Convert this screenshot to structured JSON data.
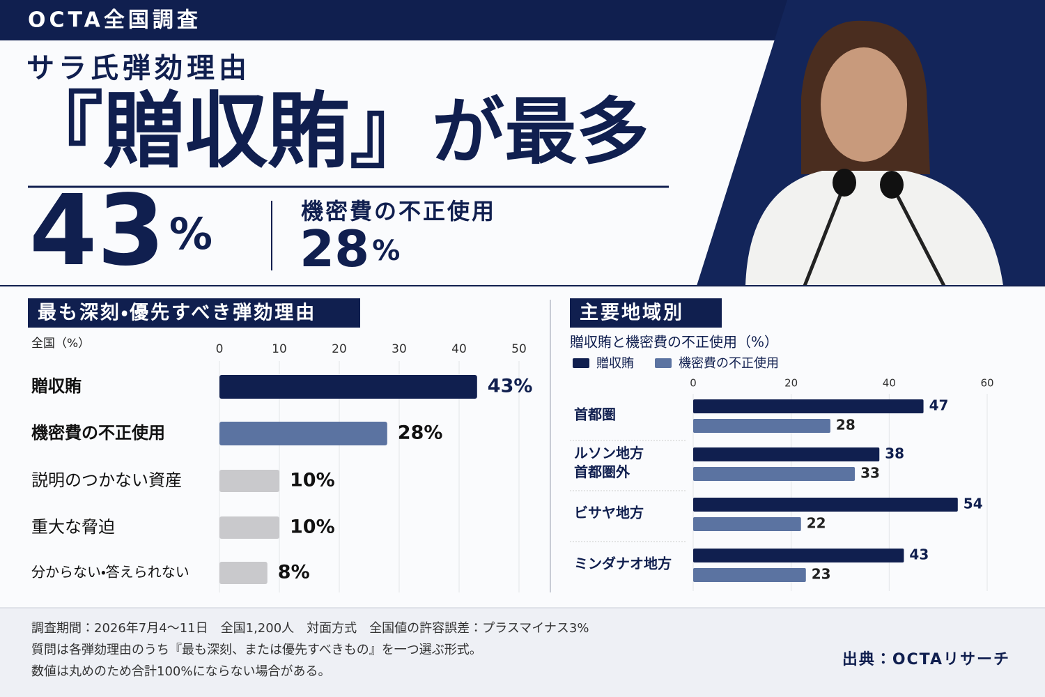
{
  "header": {
    "tag": "OCTA全国調査",
    "kicker": "サラ氏弾劾理由",
    "headline_quote": "『贈収賄』",
    "headline_rest": "が最多"
  },
  "hero": {
    "main": {
      "number": 43,
      "unit": "%"
    },
    "secondary": {
      "label": "機密費の不正使用",
      "number": 28,
      "unit": "%"
    }
  },
  "chart_data": [
    {
      "type": "bar",
      "orientation": "horizontal",
      "title": "最も深刻・優先すべき弾劾理由",
      "subtitle": "全国（%）",
      "categories": [
        "贈収賄",
        "機密費の不正使用",
        "説明のつかない資産",
        "重大な脅迫",
        "分からない・答えられない"
      ],
      "values": [
        43,
        28,
        10,
        10,
        8
      ],
      "value_labels": [
        "43%",
        "28%",
        "10%",
        "10%",
        "8%"
      ],
      "colors": [
        "#101f4f",
        "#5b73a1",
        "#c9c9cc",
        "#c9c9cc",
        "#c9c9cc"
      ],
      "xlim": [
        0,
        50
      ],
      "xticks": [
        0,
        10,
        20,
        30,
        40,
        50
      ],
      "grid": true
    },
    {
      "type": "grouped_bar",
      "orientation": "horizontal",
      "title": "主要地域別",
      "subtitle": "贈収賄と機密費の不正使用（%）",
      "categories": [
        "首都圏",
        "ルソン地方\n首都圏外",
        "ビサヤ地方",
        "ミンダナオ地方"
      ],
      "series": [
        {
          "name": "贈収賄",
          "color": "#101f4f",
          "values": [
            47,
            38,
            54,
            43
          ]
        },
        {
          "name": "機密費の不正使用",
          "color": "#5b73a1",
          "values": [
            28,
            33,
            22,
            23
          ]
        }
      ],
      "xlim": [
        0,
        60
      ],
      "xticks": [
        0,
        20,
        40,
        60
      ],
      "grid": true,
      "legend": "top-left"
    }
  ],
  "footer": {
    "notes": [
      "調査期間：2026年7月4～11日　全国1,200人　対面方式　全国値の許容誤差：プラスマイナス3%",
      "質問は各弾劾理由のうち『最も深刻、または優先すべきもの』を一つ選ぶ形式。",
      "数値は丸めのため合計100%にならない場合がある。"
    ],
    "source": "出典：OCTAリサーチ"
  }
}
